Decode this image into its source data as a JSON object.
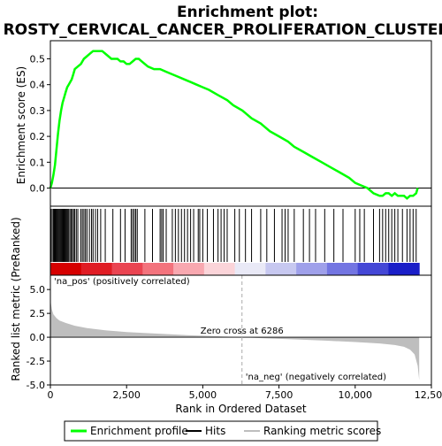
{
  "chart_data": {
    "type": "line",
    "title": "Enrichment plot:",
    "subtitle": "ROSTY_CERVICAL_CANCER_PROLIFERATION_CLUSTER",
    "panels": {
      "enrichment": {
        "ylabel": "Enrichment score (ES)",
        "ylim": [
          -0.07,
          0.57
        ],
        "yticks": [
          "0.0",
          "0.1",
          "0.2",
          "0.3",
          "0.4",
          "0.5"
        ],
        "line_color": "#00ff00",
        "series": [
          {
            "name": "Enrichment profile",
            "x": [
              0,
              50,
              100,
              150,
              200,
              250,
              300,
              350,
              400,
              450,
              500,
              550,
              600,
              650,
              700,
              750,
              800,
              900,
              1000,
              1100,
              1200,
              1300,
              1400,
              1500,
              1600,
              1700,
              1800,
              1900,
              2000,
              2100,
              2200,
              2300,
              2400,
              2500,
              2600,
              2700,
              2800,
              2900,
              3000,
              3200,
              3400,
              3600,
              3800,
              4000,
              4200,
              4400,
              4600,
              4800,
              5000,
              5200,
              5500,
              5800,
              6000,
              6300,
              6600,
              6900,
              7200,
              7500,
              7800,
              8000,
              8300,
              8600,
              8900,
              9200,
              9500,
              9800,
              10000,
              10200,
              10400,
              10600,
              10800,
              10900,
              11000,
              11100,
              11200,
              11300,
              11400,
              11500,
              11600,
              11700,
              11800,
              11900,
              12000,
              12050
            ],
            "y": [
              0.0,
              0.02,
              0.05,
              0.09,
              0.15,
              0.21,
              0.26,
              0.3,
              0.33,
              0.35,
              0.37,
              0.39,
              0.4,
              0.41,
              0.42,
              0.44,
              0.46,
              0.47,
              0.48,
              0.5,
              0.51,
              0.52,
              0.53,
              0.53,
              0.53,
              0.53,
              0.52,
              0.51,
              0.5,
              0.5,
              0.5,
              0.49,
              0.49,
              0.48,
              0.48,
              0.49,
              0.5,
              0.5,
              0.49,
              0.47,
              0.46,
              0.46,
              0.45,
              0.44,
              0.43,
              0.42,
              0.41,
              0.4,
              0.39,
              0.38,
              0.36,
              0.34,
              0.32,
              0.3,
              0.27,
              0.25,
              0.22,
              0.2,
              0.18,
              0.16,
              0.14,
              0.12,
              0.1,
              0.08,
              0.06,
              0.04,
              0.02,
              0.01,
              0.0,
              -0.02,
              -0.03,
              -0.03,
              -0.02,
              -0.02,
              -0.03,
              -0.02,
              -0.03,
              -0.03,
              -0.03,
              -0.04,
              -0.03,
              -0.03,
              -0.02,
              0.0
            ]
          }
        ]
      },
      "hits": {
        "positions": [
          20,
          60,
          100,
          130,
          160,
          190,
          220,
          250,
          280,
          300,
          330,
          360,
          390,
          420,
          450,
          480,
          510,
          540,
          570,
          600,
          640,
          680,
          720,
          760,
          800,
          850,
          900,
          1000,
          1050,
          1100,
          1150,
          1200,
          1280,
          1350,
          1400,
          1480,
          1550,
          1650,
          1800,
          2050,
          2300,
          2450,
          2650,
          2700,
          2750,
          2800,
          2850,
          3100,
          3350,
          3600,
          3650,
          3700,
          3800,
          4000,
          4100,
          4200,
          4300,
          4400,
          4500,
          4600,
          4700,
          4850,
          4900,
          5000,
          5150,
          5350,
          5500,
          5600,
          5700,
          5800,
          6050,
          6200,
          6400,
          6600,
          6900,
          7100,
          7350,
          7600,
          7700,
          7800,
          8000,
          8300,
          8500,
          8700,
          9000,
          9300,
          9600,
          10000,
          10150,
          10300,
          10600,
          10800,
          10900,
          11000,
          11100,
          11200,
          11300,
          11400,
          11550,
          11700,
          11800,
          11900,
          12000
        ],
        "bar_colors": [
          "#d60000",
          "#e01c24",
          "#ea4451",
          "#f3737d",
          "#f8a8b0",
          "#fbd4d9",
          "#e9e9f6",
          "#c7c8f0",
          "#9fa0ea",
          "#7375e2",
          "#4447d6",
          "#1a1ec8"
        ]
      },
      "ranking": {
        "ylabel": "Ranked list metric (PreRanked)",
        "ylim": [
          -5,
          6.5
        ],
        "yticks": [
          "5.0",
          "2.5",
          "0.0",
          "-2.5",
          "-5.0"
        ],
        "fill_color": "#bebebe",
        "x": [
          0,
          50,
          100,
          200,
          300,
          500,
          800,
          1200,
          1800,
          2500,
          3500,
          4500,
          5500,
          6286,
          7000,
          8000,
          9000,
          10000,
          10800,
          11300,
          11600,
          11800,
          11950,
          12050,
          12100
        ],
        "y": [
          3.9,
          2.9,
          2.4,
          2.0,
          1.75,
          1.5,
          1.2,
          0.95,
          0.72,
          0.55,
          0.38,
          0.22,
          0.1,
          0.0,
          -0.1,
          -0.22,
          -0.35,
          -0.5,
          -0.65,
          -0.82,
          -1.0,
          -1.3,
          -1.8,
          -3.0,
          -4.5
        ],
        "zero_cross_label": "Zero cross at 6286",
        "pos_label": "'na_pos' (positively correlated)",
        "neg_label": "'na_neg' (negatively correlated)",
        "pos_color": "#cc0000",
        "neg_color": "#0000cc"
      }
    },
    "xlabel": "Rank in Ordered Dataset",
    "xlim": [
      0,
      12500
    ],
    "xticks": [
      "0",
      "2,500",
      "5,000",
      "7,500",
      "10,000",
      "12,500"
    ],
    "legend": {
      "placement": "bottom",
      "entries": [
        "Enrichment profile",
        "Hits",
        "Ranking metric scores"
      ]
    }
  }
}
